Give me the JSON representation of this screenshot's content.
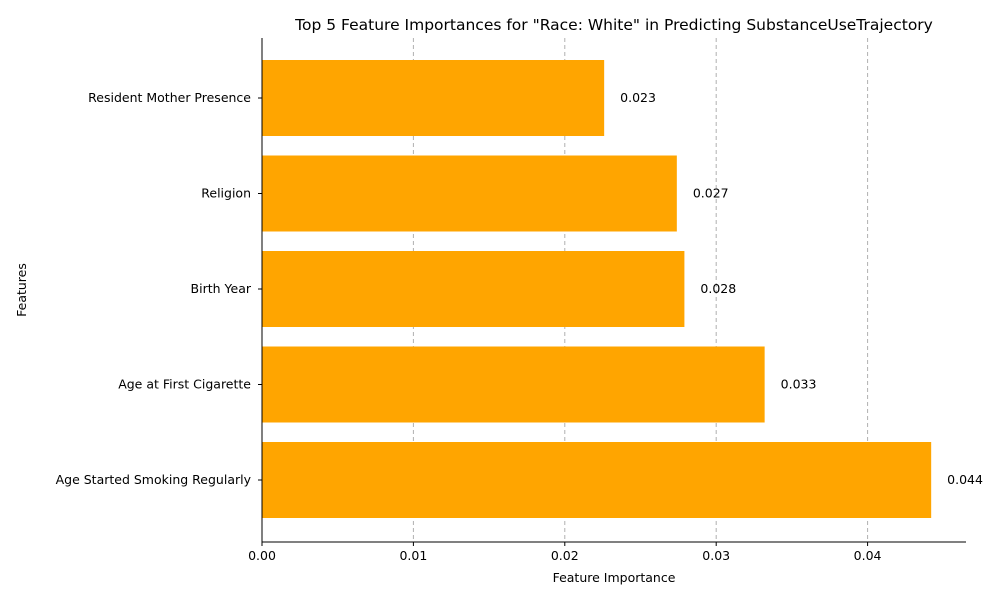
{
  "chart_data": {
    "type": "bar",
    "orientation": "horizontal",
    "title": "Top 5 Feature Importances for \"Race: White\" in Predicting SubstanceUseTrajectory",
    "xlabel": "Feature Importance",
    "ylabel": "Features",
    "categories": [
      "Age Started Smoking Regularly",
      "Age at First Cigarette",
      "Birth Year",
      "Religion",
      "Resident Mother Presence"
    ],
    "values": [
      0.0442,
      0.0332,
      0.0279,
      0.0274,
      0.0226
    ],
    "value_labels": [
      "0.044",
      "0.033",
      "0.028",
      "0.027",
      "0.023"
    ],
    "xlim": [
      0,
      0.0465
    ],
    "xticks": [
      0.0,
      0.01,
      0.02,
      0.03,
      0.04
    ],
    "xtick_labels": [
      "0.00",
      "0.01",
      "0.02",
      "0.03",
      "0.04"
    ],
    "grid": "x-dashed",
    "bar_color": "#FFA500"
  }
}
